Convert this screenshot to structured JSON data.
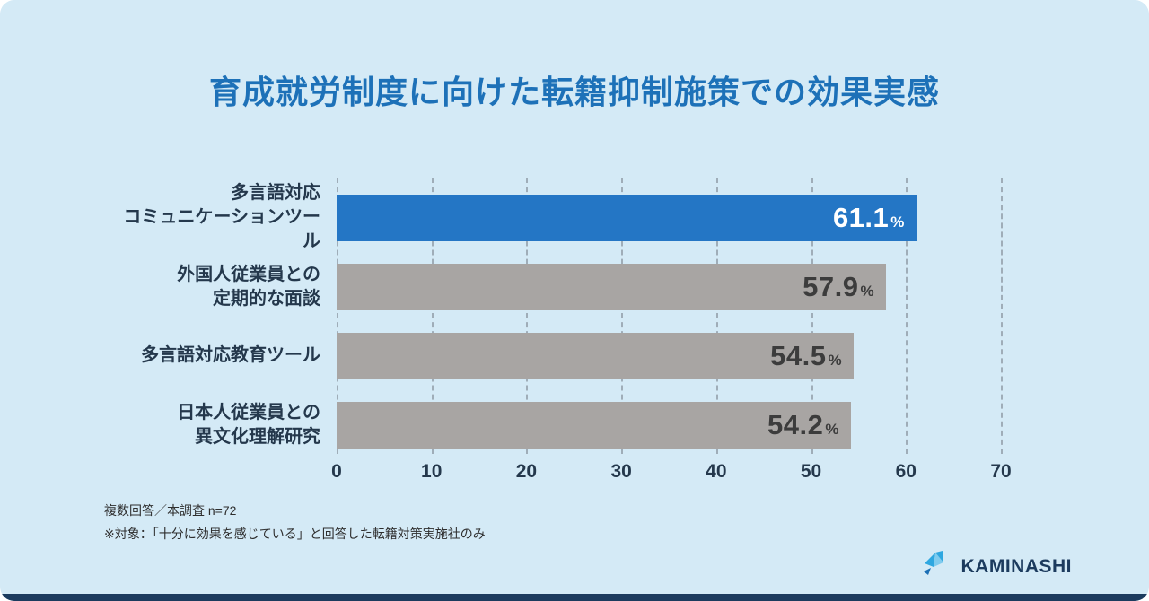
{
  "title": "育成就労制度に向けた転籍抑制施策での効果実感",
  "chart_data": {
    "type": "bar",
    "orientation": "horizontal",
    "title": "育成就労制度に向けた転籍抑制施策での効果実感",
    "categories": [
      "多言語対応\nコミュニケーションツール",
      "外国人従業員との\n定期的な面談",
      "多言語対応教育ツール",
      "日本人従業員との\n異文化理解研究"
    ],
    "values": [
      61.1,
      57.9,
      54.5,
      54.2
    ],
    "value_suffix": "%",
    "xlim": [
      0,
      70
    ],
    "xticks": [
      0,
      10,
      20,
      30,
      40,
      50,
      60,
      70
    ],
    "grid": "dashed-vertical",
    "highlight_index": 0,
    "colors": {
      "highlight_bar": "#2476c5",
      "bar": "#a8a5a3",
      "highlight_value_text": "#ffffff",
      "value_text": "#3c3c3c"
    }
  },
  "footnotes": [
    "複数回答／本調査 n=72",
    "※対象：「十分に効果を感じている」と回答した転籍対策実施社のみ"
  ],
  "logo": {
    "text": "KAMINASHI"
  },
  "colors": {
    "background": "#d4eaf6",
    "title": "#1d71b8",
    "label": "#24384c",
    "axis": "#24384c",
    "gridline": "#9fadb8",
    "footer_strip": "#1c3b5e"
  }
}
